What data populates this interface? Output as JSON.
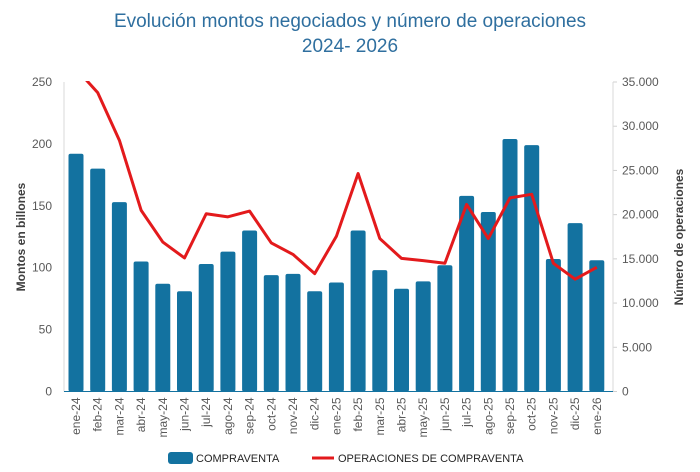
{
  "chart_data": {
    "type": "bar+line",
    "title": "Evolución montos negociados y número de operaciones",
    "subtitle": "2024- 2026",
    "categories": [
      "ene-24",
      "feb-24",
      "mar-24",
      "abr-24",
      "may-24",
      "jun-24",
      "jul-24",
      "ago-24",
      "sep-24",
      "oct-24",
      "nov-24",
      "dic-24",
      "ene-25",
      "feb-25",
      "mar-25",
      "abr-25",
      "may-25",
      "jun-25",
      "jul-25",
      "ago-25",
      "sep-25",
      "oct-25",
      "nov-25",
      "dic-25",
      "ene-26"
    ],
    "ylabel": "Montos en billones",
    "y2label": "Número de operaciones",
    "ylim": [
      0,
      250
    ],
    "y2lim": [
      0,
      35000
    ],
    "yticks": [
      "0",
      "50",
      "100",
      "150",
      "200",
      "250"
    ],
    "y2ticks": [
      "0",
      "5.000",
      "10.000",
      "15.000",
      "20.000",
      "25.000",
      "30.000",
      "35.000"
    ],
    "grid": false,
    "legend_position": "bottom",
    "series": [
      {
        "name": "COMPRAVENTA",
        "type": "bar",
        "axis": "left",
        "color": "#1372a0",
        "values": [
          192,
          180,
          153,
          105,
          87,
          81,
          103,
          113,
          130,
          94,
          95,
          81,
          88,
          130,
          98,
          83,
          89,
          102,
          158,
          145,
          204,
          199,
          107,
          136,
          106
        ]
      },
      {
        "name": "OPERACIONES DE COMPRAVENTA",
        "type": "line",
        "axis": "right",
        "color": "#e31a1c",
        "values": [
          36500,
          33800,
          28400,
          20500,
          16900,
          15100,
          20100,
          19750,
          20400,
          16800,
          15500,
          13330,
          17550,
          24650,
          17300,
          15050,
          14800,
          14500,
          21150,
          17300,
          21900,
          22300,
          14500,
          12700,
          14050
        ]
      }
    ]
  }
}
